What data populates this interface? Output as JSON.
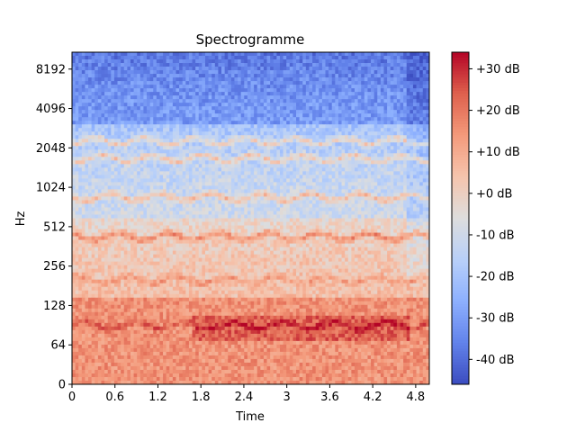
{
  "chart_data": {
    "type": "heatmap",
    "title": "Spectrogramme",
    "xlabel": "Time",
    "ylabel": "Hz",
    "x_ticks": [
      "0",
      "0.6",
      "1.2",
      "1.8",
      "2.4",
      "3",
      "3.6",
      "4.2",
      "4.8"
    ],
    "x_tick_values": [
      0,
      0.6,
      1.2,
      1.8,
      2.4,
      3.0,
      3.6,
      4.2,
      4.8
    ],
    "xlim": [
      0,
      4.99
    ],
    "y_scale": "symlog",
    "y_ticks": [
      "0",
      "64",
      "128",
      "256",
      "512",
      "1024",
      "2048",
      "4096",
      "8192"
    ],
    "y_tick_values": [
      0,
      64,
      128,
      256,
      512,
      1024,
      2048,
      4096,
      8192
    ],
    "ylim": [
      0,
      11025
    ],
    "colorbar": {
      "colormap": "coolwarm",
      "range_db": [
        -46,
        34
      ],
      "ticks": [
        "+30 dB",
        "+20 dB",
        "+10 dB",
        "+0 dB",
        "-10 dB",
        "-20 dB",
        "-30 dB",
        "-40 dB"
      ],
      "tick_values": [
        30,
        20,
        10,
        0,
        -10,
        -20,
        -30,
        -40
      ]
    },
    "grid": false,
    "harmonic_bands_hz": [
      90,
      200,
      430,
      860,
      1700,
      2300
    ],
    "approx_level_db": [
      {
        "band": "low (0-150 Hz)",
        "db": 15
      },
      {
        "band": "mid (150-600 Hz)",
        "db": 5
      },
      {
        "band": "upper (600-3000 Hz)",
        "db": -10
      },
      {
        "band": "high (3000-11025 Hz)",
        "db": -30
      }
    ]
  }
}
